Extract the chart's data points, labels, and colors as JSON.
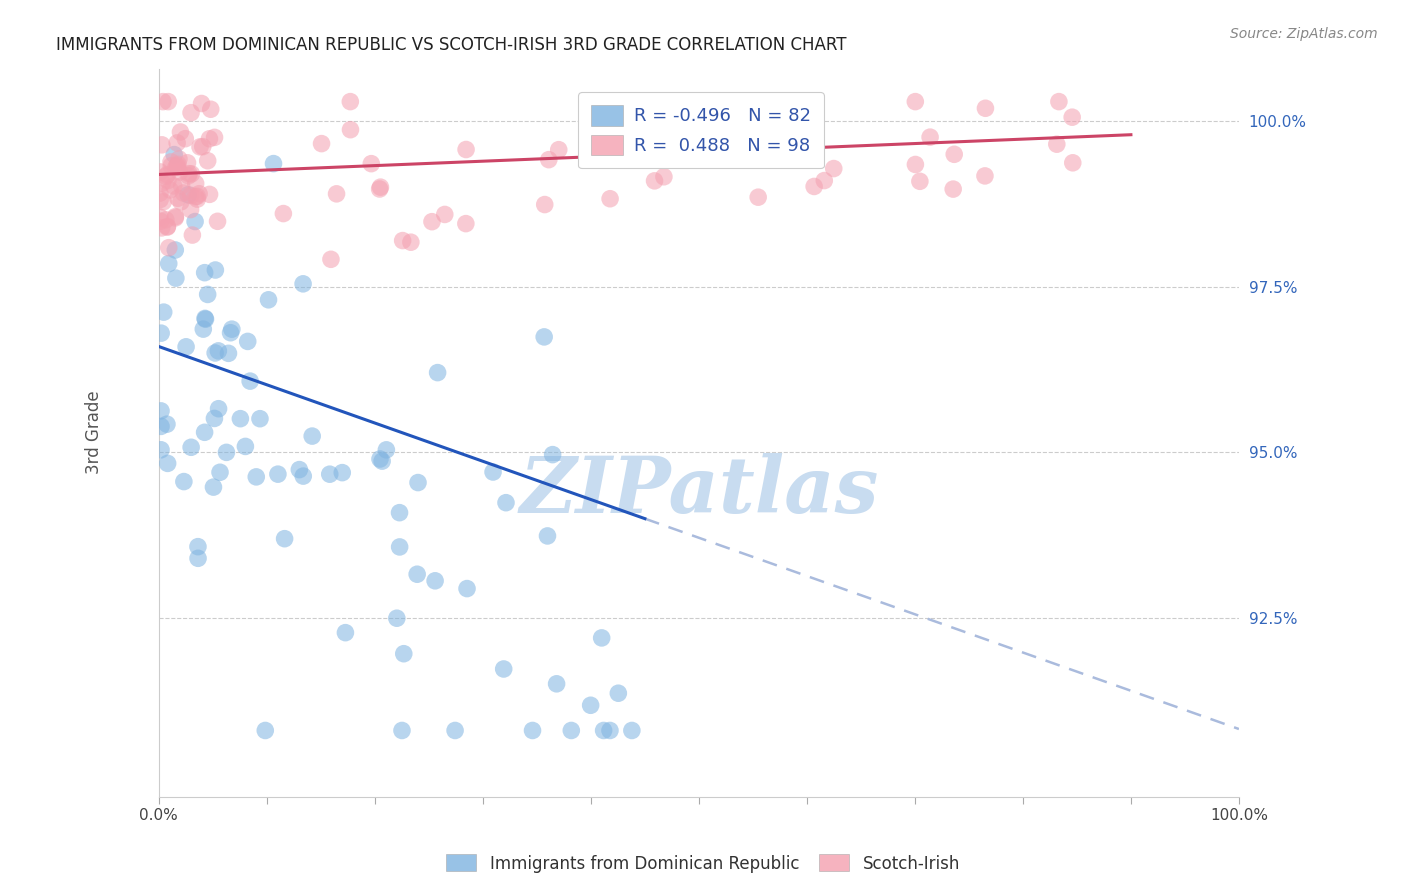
{
  "title": "IMMIGRANTS FROM DOMINICAN REPUBLIC VS SCOTCH-IRISH 3RD GRADE CORRELATION CHART",
  "source": "Source: ZipAtlas.com",
  "ylabel": "3rd Grade",
  "xlim": [
    0.0,
    1.0
  ],
  "ylim": [
    0.898,
    1.008
  ],
  "yticks": [
    0.925,
    0.95,
    0.975,
    1.0
  ],
  "ytick_labels": [
    "92.5%",
    "95.0%",
    "97.5%",
    "100.0%"
  ],
  "xticks": [
    0.0,
    0.1,
    0.2,
    0.3,
    0.4,
    0.5,
    0.6,
    0.7,
    0.8,
    0.9,
    1.0
  ],
  "legend1_R": "-0.496",
  "legend1_N": "82",
  "legend2_R": "0.488",
  "legend2_N": "98",
  "blue_color": "#7FB3E0",
  "pink_color": "#F4A0B0",
  "blue_line_color": "#2255BB",
  "pink_line_color": "#CC4466",
  "dash_color": "#AABBDD",
  "watermark": "ZIPatlas",
  "background_color": "#ffffff",
  "grid_color": "#cccccc"
}
